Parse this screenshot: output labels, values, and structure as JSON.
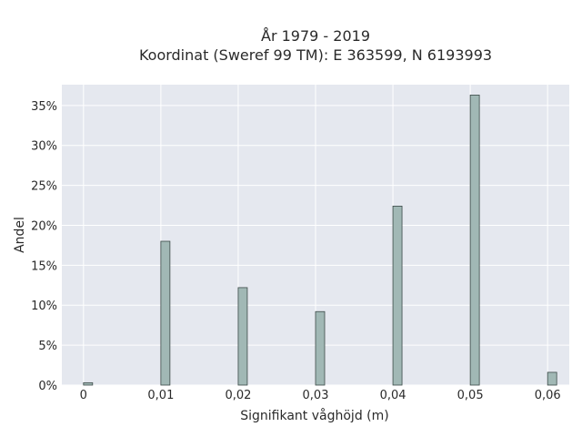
{
  "chart_data": {
    "type": "bar",
    "title_line1": "År 1979 - 2019",
    "title_line2": "Koordinat (Sweref 99 TM): E 363599, N 6193993",
    "xlabel": "Signifikant våghöjd (m)",
    "ylabel": "Andel",
    "x": [
      0,
      0.01,
      0.02,
      0.03,
      0.04,
      0.05,
      0.06
    ],
    "values": [
      0.3,
      18.0,
      12.2,
      9.2,
      22.4,
      36.3,
      1.6
    ],
    "xlim": [
      -0.0028,
      0.0628
    ],
    "ylim": [
      0,
      37.6
    ],
    "x_ticks": [
      {
        "value": 0,
        "label": "0"
      },
      {
        "value": 0.01,
        "label": "0,01"
      },
      {
        "value": 0.02,
        "label": "0,02"
      },
      {
        "value": 0.03,
        "label": "0,03"
      },
      {
        "value": 0.04,
        "label": "0,04"
      },
      {
        "value": 0.05,
        "label": "0,05"
      },
      {
        "value": 0.06,
        "label": "0,06"
      }
    ],
    "y_ticks": [
      {
        "value": 0,
        "label": "0%"
      },
      {
        "value": 5,
        "label": "5%"
      },
      {
        "value": 10,
        "label": "10%"
      },
      {
        "value": 15,
        "label": "15%"
      },
      {
        "value": 20,
        "label": "20%"
      },
      {
        "value": 25,
        "label": "25%"
      },
      {
        "value": 30,
        "label": "30%"
      },
      {
        "value": 35,
        "label": "35%"
      }
    ],
    "grid": true,
    "colors": {
      "plot_bg": "#e5e8ef",
      "grid": "#ffffff",
      "bar_fill": "#a1b8b5",
      "bar_stroke": "#3c4a48"
    }
  }
}
